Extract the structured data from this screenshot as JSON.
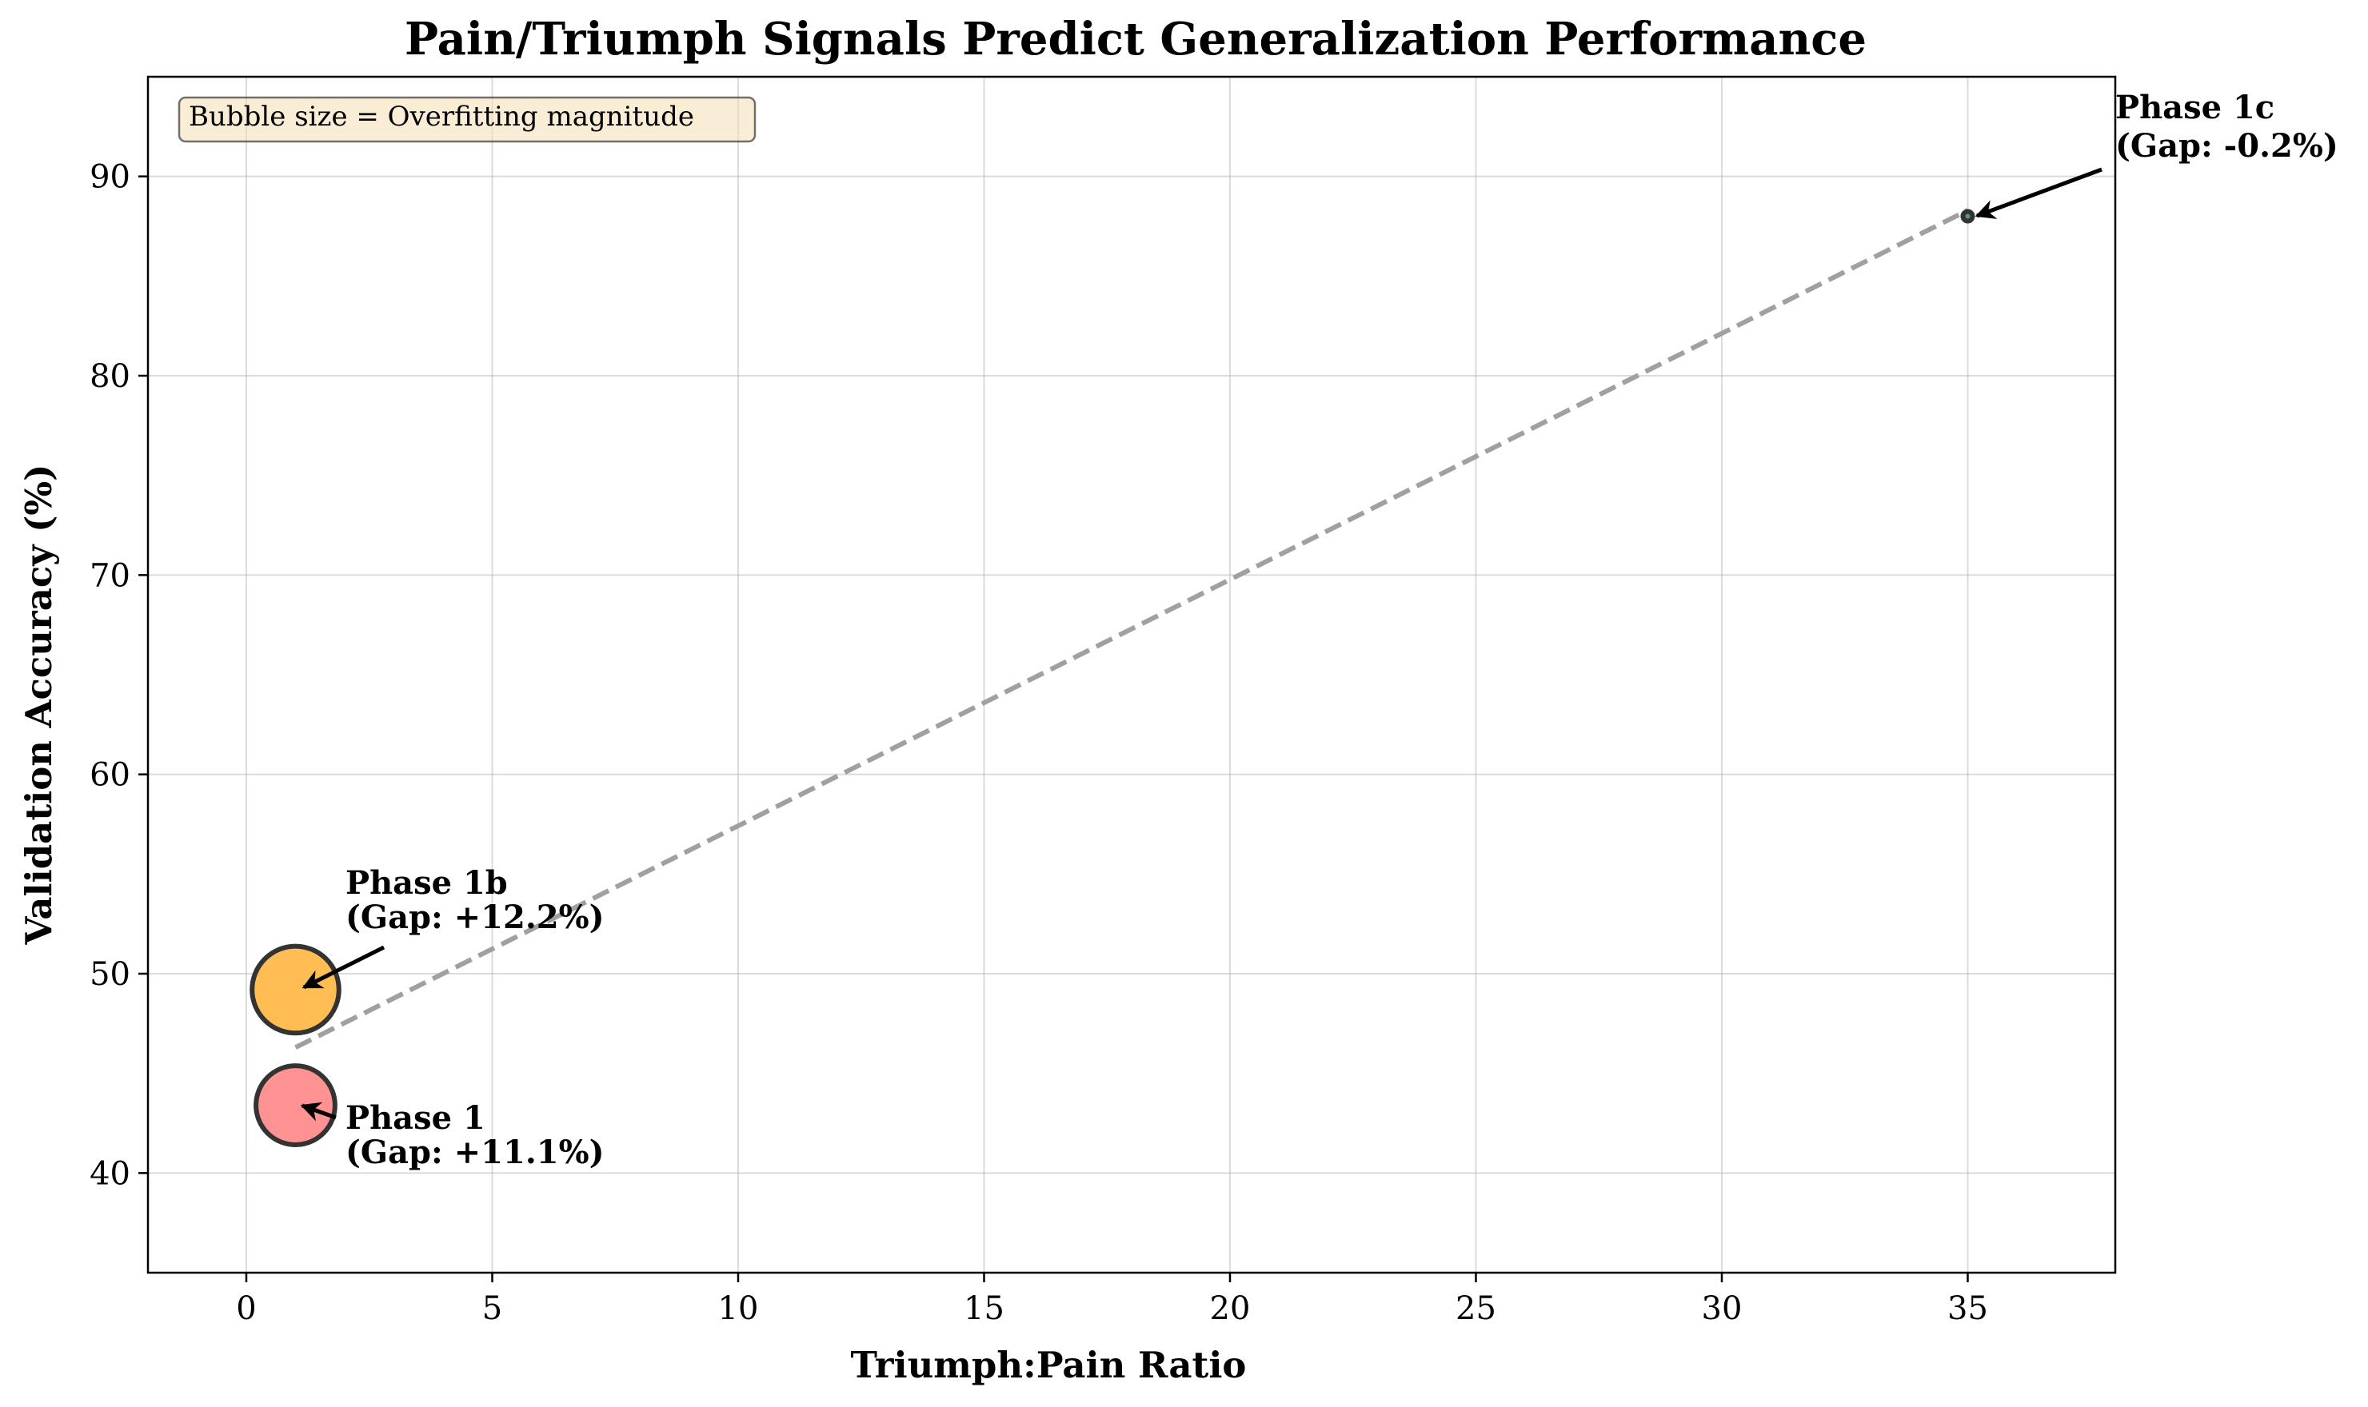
{
  "chart_data": {
    "type": "scatter",
    "title": "Pain/Triumph Signals Predict Generalization Performance",
    "xlabel": "Triumph:Pain Ratio",
    "ylabel": "Validation Accuracy (%)",
    "xlim": [
      -2,
      38
    ],
    "ylim": [
      35,
      95
    ],
    "xticks": [
      0,
      5,
      10,
      15,
      20,
      25,
      30,
      35
    ],
    "yticks": [
      40,
      50,
      60,
      70,
      80,
      90
    ],
    "grid": true,
    "note": "Bubble size = Overfitting magnitude",
    "points": [
      {
        "name": "Phase 1",
        "x": 1,
        "y": 43.4,
        "gap": 11.1,
        "label_line1": "Phase 1",
        "label_line2": "(Gap: +11.1%)",
        "color": "#ff8c8c"
      },
      {
        "name": "Phase 1b",
        "x": 1,
        "y": 49.2,
        "gap": 12.2,
        "label_line1": "Phase 1b",
        "label_line2": "(Gap: +12.2%)",
        "color": "#ffb94a"
      },
      {
        "name": "Phase 1c",
        "x": 35,
        "y": 88.0,
        "gap": -0.2,
        "label_line1": "Phase 1c",
        "label_line2": "(Gap: -0.2%)",
        "color": "#5a8a8a"
      }
    ],
    "trendline": {
      "x": [
        1,
        35
      ],
      "y": [
        46.3,
        88.3
      ],
      "style": "dashed",
      "color": "#a0a0a0"
    }
  }
}
